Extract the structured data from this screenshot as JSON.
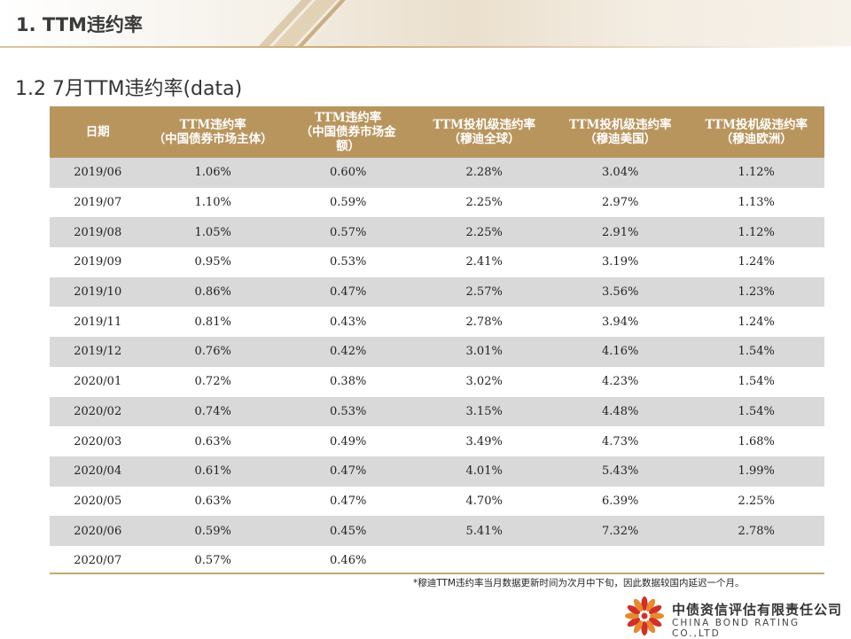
{
  "header": {
    "section_title": "1. TTM违约率",
    "subtitle": "1.2 7月TTM违约率(data)"
  },
  "table": {
    "columns": [
      "日期",
      "TTM违约率\n（中国债券市场主体）",
      "TTM违约率\n（中国债券市场金\n额）",
      "TTM投机级违约率\n（穆迪全球）",
      "TTM投机级违约率\n（穆迪美国）",
      "TTM投机级违约率\n（穆迪欧洲）"
    ],
    "rows": [
      [
        "2019/06",
        "1.06%",
        "0.60%",
        "2.28%",
        "3.04%",
        "1.12%"
      ],
      [
        "2019/07",
        "1.10%",
        "0.59%",
        "2.25%",
        "2.97%",
        "1.13%"
      ],
      [
        "2019/08",
        "1.05%",
        "0.57%",
        "2.25%",
        "2.91%",
        "1.12%"
      ],
      [
        "2019/09",
        "0.95%",
        "0.53%",
        "2.41%",
        "3.19%",
        "1.24%"
      ],
      [
        "2019/10",
        "0.86%",
        "0.47%",
        "2.57%",
        "3.56%",
        "1.23%"
      ],
      [
        "2019/11",
        "0.81%",
        "0.43%",
        "2.78%",
        "3.94%",
        "1.24%"
      ],
      [
        "2019/12",
        "0.76%",
        "0.42%",
        "3.01%",
        "4.16%",
        "1.54%"
      ],
      [
        "2020/01",
        "0.72%",
        "0.38%",
        "3.02%",
        "4.23%",
        "1.54%"
      ],
      [
        "2020/02",
        "0.74%",
        "0.53%",
        "3.15%",
        "4.48%",
        "1.54%"
      ],
      [
        "2020/03",
        "0.63%",
        "0.49%",
        "3.49%",
        "4.73%",
        "1.68%"
      ],
      [
        "2020/04",
        "0.61%",
        "0.47%",
        "4.01%",
        "5.43%",
        "1.99%"
      ],
      [
        "2020/05",
        "0.63%",
        "0.47%",
        "4.70%",
        "6.39%",
        "2.25%"
      ],
      [
        "2020/06",
        "0.59%",
        "0.45%",
        "5.41%",
        "7.32%",
        "2.78%"
      ],
      [
        "2020/07",
        "0.57%",
        "0.46%",
        "",
        "",
        ""
      ]
    ]
  },
  "footnote": "*穆迪TTM违约率当月数据更新时间为次月中下旬，因此数据较国内延迟一个月。",
  "company": {
    "name_cn": "中债资信评估有限责任公司",
    "name_en": "CHINA BOND RATING CO.,LTD"
  },
  "colors": {
    "header_bg": "#b9955e",
    "stripe": "#d9d9d9",
    "accent_line": "#c6a86f"
  }
}
